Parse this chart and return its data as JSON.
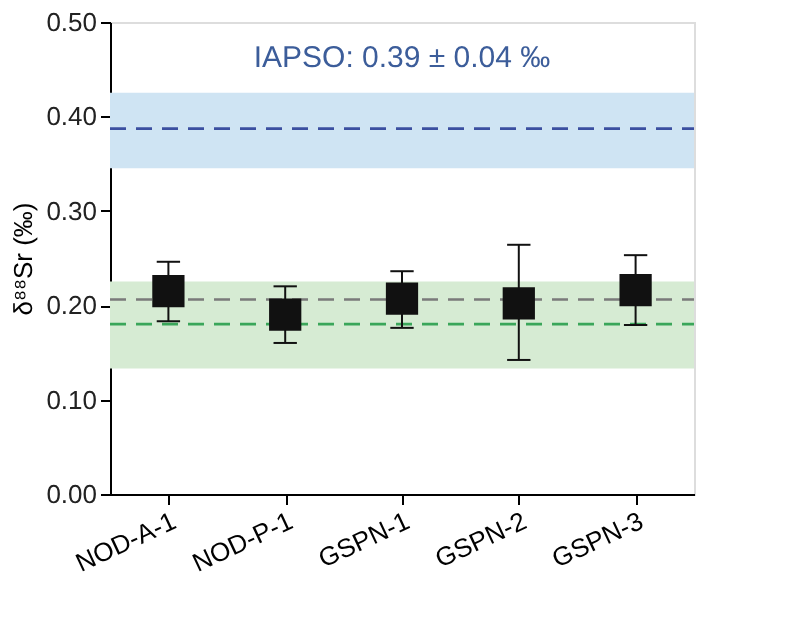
{
  "chart_data": {
    "type": "scatter",
    "ylabel": "δ⁸⁸Sr (‰)",
    "categories": [
      "NOD-A-1",
      "NOD-P-1",
      "GSPN-1",
      "GSPN-2",
      "GSPN-3"
    ],
    "series": [
      {
        "color": "#111111",
        "values": [
          0.215,
          0.19,
          0.207,
          0.202,
          0.216
        ],
        "errors": [
          [
            0.183,
            0.246
          ],
          [
            0.16,
            0.22
          ],
          [
            0.176,
            0.236
          ],
          [
            0.142,
            0.264
          ],
          [
            0.179,
            0.253
          ]
        ]
      }
    ],
    "marker": "square",
    "ylim": [
      0,
      0.5
    ],
    "yticks": [
      {
        "value": 0,
        "label": "0.00"
      },
      {
        "value": 0.1,
        "label": "0.10"
      },
      {
        "value": 0.2,
        "label": "0.20"
      },
      {
        "value": 0.3,
        "label": "0.30"
      },
      {
        "value": 0.4,
        "label": "0.40"
      },
      {
        "value": 0.5,
        "label": "0.50"
      }
    ],
    "bands": [
      {
        "axis": "y",
        "from": 0.345,
        "to": 0.425,
        "label": "IAPSO: 0.39 ± 0.04 ‰",
        "color": "#cfe4f3"
      },
      {
        "axis": "y",
        "from": 0.133,
        "to": 0.225,
        "color": "#d6ebd3"
      }
    ],
    "ref_lines": [
      {
        "axis": "y",
        "value": 0.387,
        "color": "#3b4fa0",
        "line_style": "dashed"
      },
      {
        "axis": "y",
        "value": 0.206,
        "color": "#7a7a7a",
        "line_style": "dashed"
      },
      {
        "axis": "y",
        "value": 0.18,
        "color": "#3aa65a",
        "line_style": "dashed"
      }
    ]
  }
}
